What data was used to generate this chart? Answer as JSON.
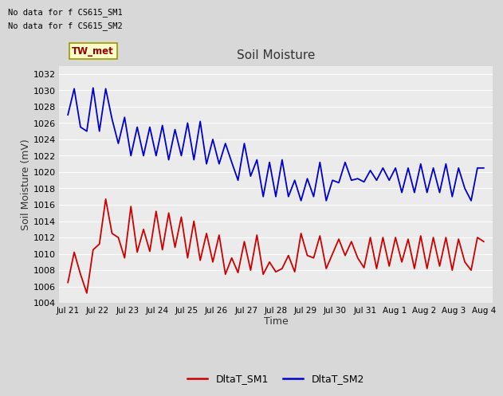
{
  "title": "Soil Moisture",
  "xlabel": "Time",
  "ylabel": "Soil Moisture (mV)",
  "ylim": [
    1004,
    1033
  ],
  "yticks": [
    1004,
    1006,
    1008,
    1010,
    1012,
    1014,
    1016,
    1018,
    1020,
    1022,
    1024,
    1026,
    1028,
    1030,
    1032
  ],
  "no_data_text1": "No data for f CS615_SM1",
  "no_data_text2": "No data for f CS615_SM2",
  "tw_met_label": "TW_met",
  "legend_entries": [
    "DltaT_SM1",
    "DltaT_SM2"
  ],
  "line1_color": "#cc0000",
  "line2_color": "#0000cc",
  "fig_bg_color": "#d8d8d8",
  "plot_bg_color": "#ebebeb",
  "grid_color": "#ffffff",
  "tw_met_bg": "#ffffcc",
  "tw_met_border": "#999900",
  "tw_met_fg": "#990000",
  "x_tick_labels": [
    "Jul 21",
    "Jul 22",
    "Jul 23",
    "Jul 24",
    "Jul 25",
    "Jul 26",
    "Jul 27",
    "Jul 28",
    "Jul 29",
    "Jul 30",
    "Jul 31",
    "Aug 1",
    "Aug 2",
    "Aug 3",
    "Aug 4"
  ],
  "sm1_y": [
    1006.5,
    1010.2,
    1007.5,
    1005.2,
    1010.5,
    1011.2,
    1016.7,
    1012.5,
    1012.0,
    1009.5,
    1015.8,
    1010.2,
    1013.0,
    1010.3,
    1015.2,
    1010.5,
    1015.0,
    1010.8,
    1014.5,
    1009.5,
    1014.0,
    1009.2,
    1012.5,
    1009.0,
    1012.3,
    1007.5,
    1009.5,
    1007.7,
    1011.5,
    1008.0,
    1012.3,
    1007.5,
    1009.0,
    1007.8,
    1008.2,
    1009.8,
    1007.8,
    1012.5,
    1009.8,
    1009.5,
    1012.2,
    1008.2,
    1010.0,
    1011.8,
    1009.8,
    1011.5,
    1009.5,
    1008.3,
    1012.0,
    1008.2,
    1012.0,
    1008.5,
    1012.0,
    1009.0,
    1011.8,
    1008.2,
    1012.2,
    1008.2,
    1012.0,
    1008.5,
    1012.0,
    1008.0,
    1011.8,
    1009.0,
    1008.0,
    1012.0,
    1011.5
  ],
  "sm2_y": [
    1027.0,
    1030.2,
    1025.5,
    1025.0,
    1030.3,
    1025.0,
    1030.2,
    1026.5,
    1023.5,
    1026.7,
    1022.0,
    1025.5,
    1022.0,
    1025.5,
    1022.0,
    1025.7,
    1021.5,
    1025.2,
    1022.0,
    1026.0,
    1021.5,
    1026.2,
    1021.0,
    1024.0,
    1021.0,
    1023.5,
    1021.2,
    1019.0,
    1023.5,
    1019.5,
    1021.5,
    1017.0,
    1021.2,
    1017.0,
    1021.5,
    1017.0,
    1019.0,
    1016.5,
    1019.2,
    1017.0,
    1021.2,
    1016.5,
    1019.0,
    1018.7,
    1021.2,
    1019.0,
    1019.2,
    1018.8,
    1020.2,
    1019.0,
    1020.5,
    1019.0,
    1020.5,
    1017.5,
    1020.5,
    1017.5,
    1021.0,
    1017.5,
    1020.5,
    1017.5,
    1021.0,
    1017.0,
    1020.5,
    1018.0,
    1016.5,
    1020.5,
    1020.5
  ]
}
